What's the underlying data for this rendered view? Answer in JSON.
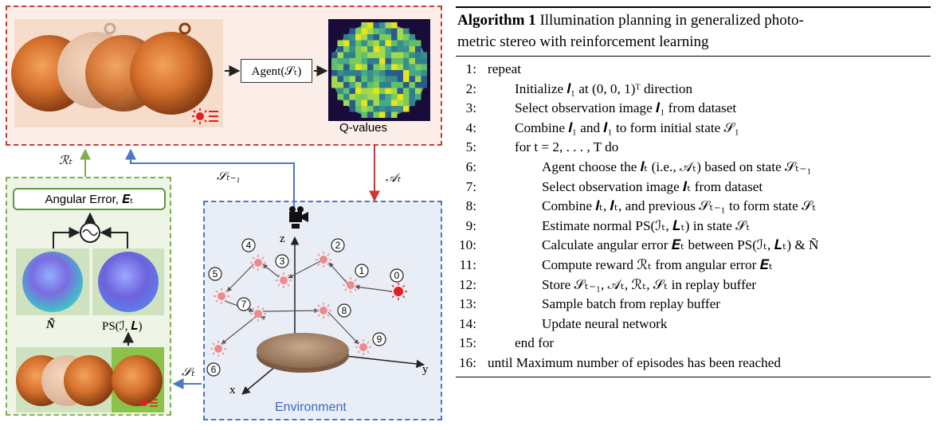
{
  "figure": {
    "agent_label": "Agent(𝒮ₜ)",
    "q_values_label": "Q-values",
    "angular_error_label": "Angular Error, 𝑬ₜ",
    "n_tilde_label": "Ñ",
    "ps_label": "PS(ℐ, 𝑳)",
    "environment_label": "Environment",
    "arrow_labels": {
      "reward": "ℛₜ",
      "prev_state": "𝒮ₜ₋₁",
      "action": "𝒜ₜ",
      "state": "𝒮ₜ"
    },
    "axes": {
      "x": "x",
      "y": "y",
      "z": "z"
    },
    "light_markers": [
      "0",
      "1",
      "2",
      "3",
      "4",
      "5",
      "6",
      "7",
      "8",
      "9"
    ]
  },
  "algorithm": {
    "title": "Algorithm 1 Illumination planning in generalized photometric stereo with reinforcement learning",
    "title_bold": "Algorithm 1",
    "title_rest_line1": "Illumination planning in generalized photo-",
    "title_rest_line2": "metric stereo with reinforcement learning",
    "lines": [
      {
        "num": "1:",
        "text": "repeat"
      },
      {
        "num": "2:",
        "text": "Initialize 𝒍₁ at (0, 0, 1)ᵀ direction"
      },
      {
        "num": "3:",
        "text": "Select observation image 𝑰₁ from dataset"
      },
      {
        "num": "4:",
        "text": "Combine 𝒍₁ and 𝑰₁ to form initial state 𝒮₁"
      },
      {
        "num": "5:",
        "text": "for  t = 2, . . . , T do"
      },
      {
        "num": "6:",
        "text": "Agent choose the 𝒍ₜ (i.e., 𝒜ₜ) based on state 𝒮ₜ₋₁"
      },
      {
        "num": "7:",
        "text": "Select observation image 𝑰ₜ from dataset"
      },
      {
        "num": "8:",
        "text": "Combine 𝒍ₜ, 𝑰ₜ, and previous 𝒮ₜ₋₁ to form state 𝒮ₜ"
      },
      {
        "num": "9:",
        "text": "Estimate normal PS(ℐₜ, 𝑳ₜ) in state 𝒮ₜ"
      },
      {
        "num": "10:",
        "text": "Calculate angular error 𝑬ₜ between PS(ℐₜ, 𝑳ₜ) & Ñ"
      },
      {
        "num": "11:",
        "text": "Compute reward ℛₜ from angular error 𝑬ₜ"
      },
      {
        "num": "12:",
        "text": "Store 𝒮ₜ₋₁, 𝒜ₜ, ℛₜ, 𝒮ₜ in replay buffer"
      },
      {
        "num": "13:",
        "text": "Sample batch from replay buffer"
      },
      {
        "num": "14:",
        "text": "Update neural network"
      },
      {
        "num": "15:",
        "text": "end for"
      },
      {
        "num": "16:",
        "text": "until Maximum number of episodes has been reached"
      }
    ]
  }
}
